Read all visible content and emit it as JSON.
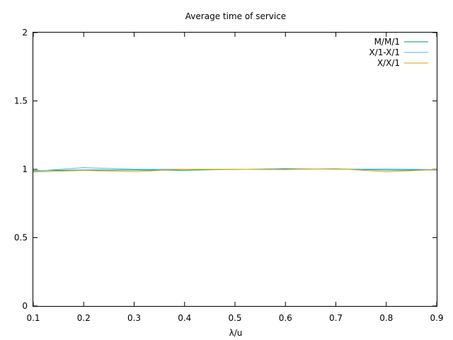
{
  "chart_data": {
    "type": "line",
    "title": "Average time of service",
    "xlabel": "λ/u",
    "ylabel": "",
    "xlim": [
      0.1,
      0.9
    ],
    "ylim": [
      0,
      2
    ],
    "x_ticks": [
      "0.1",
      "0.2",
      "0.3",
      "0.4",
      "0.5",
      "0.6",
      "0.7",
      "0.8",
      "0.9"
    ],
    "y_ticks": [
      "0",
      "0.5",
      "1",
      "1.5",
      "2"
    ],
    "grid": false,
    "legend_position": "top-right",
    "x": [
      0.1,
      0.2,
      0.3,
      0.4,
      0.5,
      0.6,
      0.7,
      0.8,
      0.9
    ],
    "series": [
      {
        "name": "M/M/1",
        "color": "#009e73",
        "values": [
          0.99,
          0.995,
          0.995,
          0.993,
          1.0,
          1.0,
          1.003,
          0.994,
          0.995
        ]
      },
      {
        "name": "X/1-X/1",
        "color": "#56b4e9",
        "values": [
          0.985,
          1.012,
          1.0,
          1.0,
          0.998,
          1.006,
          1.0,
          1.002,
          0.998
        ]
      },
      {
        "name": "X/X/1",
        "color": "#e69f00",
        "values": [
          0.98,
          0.992,
          0.983,
          1.0,
          1.0,
          0.998,
          1.005,
          0.982,
          0.998
        ]
      }
    ]
  }
}
